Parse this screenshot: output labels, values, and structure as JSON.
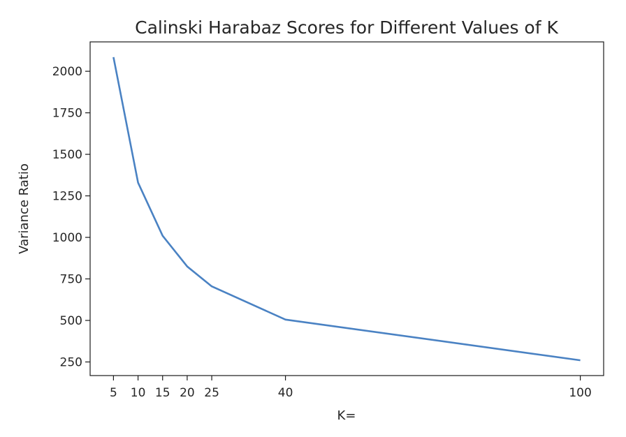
{
  "chart_data": {
    "type": "line",
    "title": "Calinski Harabaz Scores for Different Values of K",
    "xlabel": "K=",
    "ylabel": "Variance Ratio",
    "x": [
      5,
      10,
      15,
      20,
      25,
      40,
      100
    ],
    "series": [
      {
        "values": [
          2085,
          1330,
          1010,
          825,
          705,
          505,
          260
        ],
        "color": "#4a82c3"
      }
    ],
    "xticks": [
      5,
      10,
      15,
      20,
      25,
      40,
      100
    ],
    "xtick_labels": [
      "5",
      "10",
      "15",
      "20",
      "25",
      "40",
      "100"
    ],
    "yticks": [
      250,
      500,
      750,
      1000,
      1250,
      1500,
      1750,
      2000
    ],
    "ytick_labels": [
      "250",
      "500",
      "750",
      "1000",
      "1250",
      "1500",
      "1750",
      "2000"
    ],
    "xlim": [
      0.25,
      104.75
    ],
    "ylim": [
      168,
      2177
    ],
    "grid": false,
    "legend": false
  }
}
